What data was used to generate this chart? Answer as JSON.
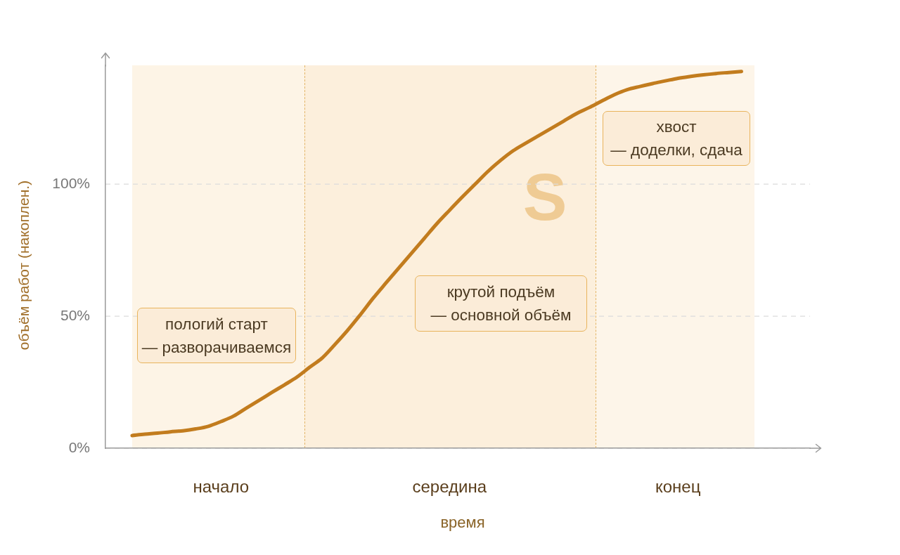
{
  "chart_data": {
    "type": "line",
    "xlabel": "время",
    "ylabel": "объём работ (накоплен.)",
    "categories": [
      null,
      null,
      null,
      null,
      null,
      null,
      null,
      "начало",
      null,
      null,
      null,
      null,
      null,
      null,
      null,
      null,
      null,
      null,
      null,
      null,
      null,
      null,
      null,
      null,
      null,
      "середина",
      null,
      null,
      null,
      null,
      null,
      null,
      null,
      null,
      null,
      null,
      null,
      null,
      null,
      null,
      null,
      null,
      null,
      "конец",
      null,
      null,
      null,
      null,
      null
    ],
    "values": [
      4.8,
      5.3,
      5.7,
      6.2,
      6.6,
      7.3,
      8.3,
      10.1,
      12.2,
      15.2,
      18.1,
      21.1,
      24.0,
      27.0,
      30.7,
      34.3,
      39.4,
      44.8,
      50.7,
      56.9,
      62.6,
      68.2,
      73.8,
      79.4,
      85.0,
      90.1,
      95.1,
      99.9,
      104.7,
      108.9,
      112.6,
      115.5,
      118.3,
      121.1,
      123.9,
      126.7,
      129.0,
      131.5,
      133.9,
      135.8,
      137.0,
      138.1,
      139.1,
      140.1,
      140.8,
      141.4,
      141.9,
      142.3,
      142.7
    ],
    "color": "#c27c1e",
    "ylim": [
      0,
      145
    ],
    "yticks": [
      {
        "value": 0,
        "label": "0%"
      },
      {
        "value": 50,
        "label": "50%"
      },
      {
        "value": 100,
        "label": "100%"
      }
    ],
    "grid": "y",
    "legend": false,
    "marker": "none",
    "line_style": "solid",
    "annotations": [
      "пологий старт\n— разворачиваемся",
      "крутой подъём\n— основной объём",
      "хвост\n— доделки, сдача",
      "S"
    ]
  }
}
